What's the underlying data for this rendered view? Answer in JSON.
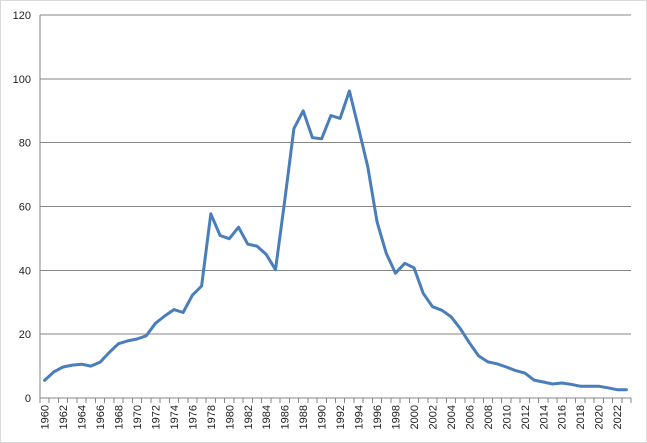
{
  "chart_data": {
    "type": "line",
    "title": "",
    "xlabel": "",
    "ylabel": "",
    "ylim": [
      0,
      120
    ],
    "y_ticks": [
      0,
      20,
      40,
      60,
      80,
      100,
      120
    ],
    "x_tick_labels": [
      "1960",
      "1962",
      "1964",
      "1966",
      "1968",
      "1970",
      "1972",
      "1974",
      "1976",
      "1978",
      "1980",
      "1982",
      "1984",
      "1986",
      "1988",
      "1990",
      "1992",
      "1994",
      "1996",
      "1998",
      "2000",
      "2002",
      "2004",
      "2006",
      "2008",
      "2010",
      "2012",
      "2014",
      "2016",
      "2018",
      "2020",
      "2022"
    ],
    "grid": "horizontal",
    "legend": "none",
    "line_color": "#4a7ebb",
    "gridline_color": "#868686",
    "series": [
      {
        "x": [
          1960,
          1961,
          1962,
          1963,
          1964,
          1965,
          1966,
          1967,
          1968,
          1969,
          1970,
          1971,
          1972,
          1973,
          1974,
          1975,
          1976,
          1977,
          1978,
          1979,
          1980,
          1981,
          1982,
          1983,
          1984,
          1985,
          1986,
          1987,
          1988,
          1989,
          1990,
          1991,
          1992,
          1993,
          1994,
          1995,
          1996,
          1997,
          1998,
          1999,
          2000,
          2001,
          2002,
          2003,
          2004,
          2005,
          2006,
          2007,
          2008,
          2009,
          2010,
          2011,
          2012,
          2013,
          2014,
          2015,
          2016,
          2017,
          2018,
          2019,
          2020,
          2021,
          2022,
          2023
        ],
        "values": [
          5.5,
          8.2,
          9.7,
          10.3,
          10.6,
          10.0,
          11.2,
          14.3,
          17.0,
          17.9,
          18.5,
          19.5,
          23.4,
          25.7,
          27.7,
          26.8,
          32.2,
          35.1,
          57.7,
          50.9,
          49.9,
          53.5,
          48.2,
          47.6,
          45.0,
          40.2,
          61.8,
          84.4,
          90.0,
          81.6,
          81.2,
          88.5,
          87.6,
          96.2,
          84.5,
          72.4,
          55.1,
          45.3,
          39.1,
          42.2,
          40.8,
          32.8,
          28.6,
          27.5,
          25.5,
          21.8,
          17.3,
          13.2,
          11.3,
          10.7,
          9.7,
          8.6,
          7.8,
          5.6,
          5.0,
          4.4,
          4.7,
          4.3,
          3.7,
          3.7,
          3.7,
          3.2,
          2.6,
          2.6
        ]
      }
    ]
  }
}
